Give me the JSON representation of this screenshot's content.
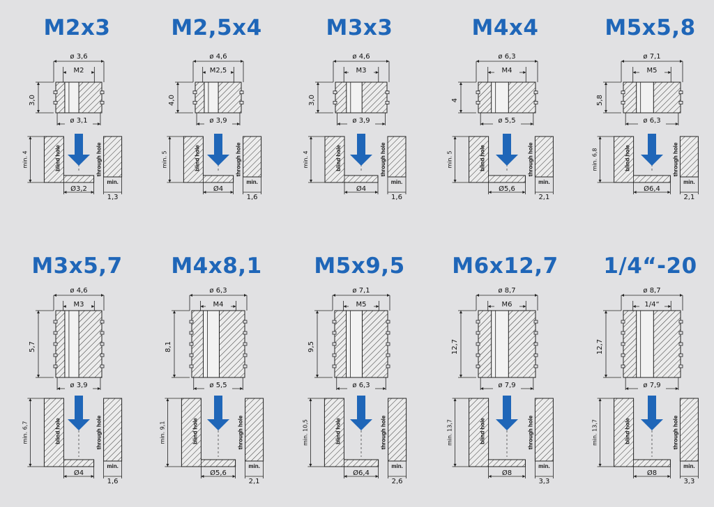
{
  "colors": {
    "background": "#e1e1e3",
    "title": "#1f66b8",
    "arrow": "#1f66b8",
    "line": "#222222",
    "hatch": "#333333"
  },
  "labels": {
    "blind_hole": "blind hole",
    "through_hole": "through hole",
    "min": "min."
  },
  "inserts": [
    {
      "title": "M2x3",
      "outer_diameter": "ø 3,6",
      "thread": "M2",
      "insert_length": "3,0",
      "bottom_diameter": "ø 3,1",
      "hole_depth": "min. 4",
      "hole_diameter": "Ø3,2",
      "wall_min": "1,3"
    },
    {
      "title": "M2,5x4",
      "outer_diameter": "ø 4,6",
      "thread": "M2,5",
      "insert_length": "4,0",
      "bottom_diameter": "ø 3,9",
      "hole_depth": "min. 5",
      "hole_diameter": "Ø4",
      "wall_min": "1,6"
    },
    {
      "title": "M3x3",
      "outer_diameter": "ø 4,6",
      "thread": "M3",
      "insert_length": "3,0",
      "bottom_diameter": "ø 3,9",
      "hole_depth": "min. 4",
      "hole_diameter": "Ø4",
      "wall_min": "1,6"
    },
    {
      "title": "M4x4",
      "outer_diameter": "ø 6,3",
      "thread": "M4",
      "insert_length": "4",
      "bottom_diameter": "ø 5,5",
      "hole_depth": "min. 5",
      "hole_diameter": "Ø5,6",
      "wall_min": "2,1"
    },
    {
      "title": "M5x5,8",
      "outer_diameter": "ø 7,1",
      "thread": "M5",
      "insert_length": "5,8",
      "bottom_diameter": "ø 6,3",
      "hole_depth": "min. 6,8",
      "hole_diameter": "Ø6,4",
      "wall_min": "2,1"
    },
    {
      "title": "M3x5,7",
      "outer_diameter": "ø 4,6",
      "thread": "M3",
      "insert_length": "5,7",
      "bottom_diameter": "ø 3,9",
      "hole_depth": "min. 6,7",
      "hole_diameter": "Ø4",
      "wall_min": "1,6"
    },
    {
      "title": "M4x8,1",
      "outer_diameter": "ø 6,3",
      "thread": "M4",
      "insert_length": "8,1",
      "bottom_diameter": "ø 5,5",
      "hole_depth": "min. 9,1",
      "hole_diameter": "Ø5,6",
      "wall_min": "2,1"
    },
    {
      "title": "M5x9,5",
      "outer_diameter": "ø 7,1",
      "thread": "M5",
      "insert_length": "9,5",
      "bottom_diameter": "ø 6,3",
      "hole_depth": "min. 10,5",
      "hole_diameter": "Ø6,4",
      "wall_min": "2,6"
    },
    {
      "title": "M6x12,7",
      "outer_diameter": "ø 8,7",
      "thread": "M6",
      "insert_length": "12,7",
      "bottom_diameter": "ø 7,9",
      "hole_depth": "min. 13,7",
      "hole_diameter": "Ø8",
      "wall_min": "3,3"
    },
    {
      "title": "1/4“-20",
      "outer_diameter": "ø 8,7",
      "thread": "1/4“",
      "insert_length": "12,7",
      "bottom_diameter": "ø 7,9",
      "hole_depth": "min. 13,7",
      "hole_diameter": "Ø8",
      "wall_min": "3,3"
    }
  ]
}
